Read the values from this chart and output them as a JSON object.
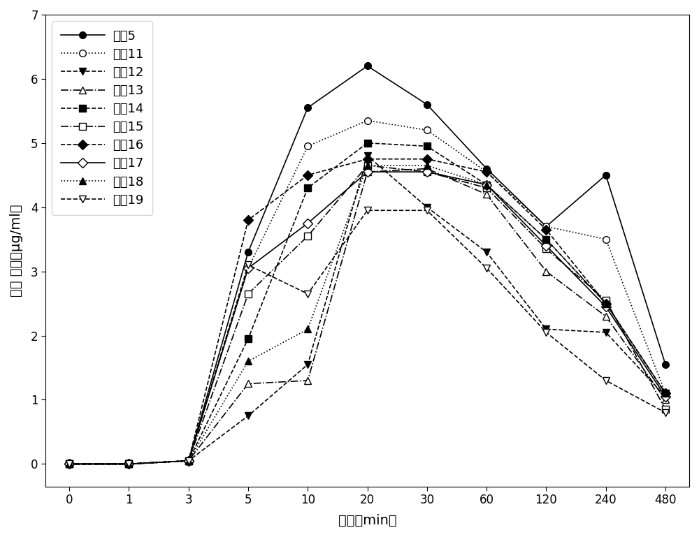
{
  "time_labels": [
    "0",
    "1",
    "3",
    "5",
    "10",
    "20",
    "30",
    "60",
    "120",
    "240",
    "480"
  ],
  "series": {
    "组别5": [
      0,
      0,
      0.05,
      3.3,
      5.55,
      6.2,
      5.6,
      4.6,
      3.7,
      4.5,
      1.55
    ],
    "组别11": [
      0,
      0,
      0.05,
      3.05,
      4.95,
      5.35,
      5.2,
      4.55,
      3.7,
      3.5,
      1.1
    ],
    "组别12": [
      0,
      0,
      0.05,
      0.75,
      1.55,
      4.8,
      4.0,
      3.3,
      2.1,
      2.05,
      1.05
    ],
    "组别13": [
      0,
      0,
      0.05,
      1.25,
      1.3,
      4.55,
      4.6,
      4.2,
      3.0,
      2.3,
      1.0
    ],
    "组别14": [
      0,
      0,
      0.05,
      1.95,
      4.3,
      5.0,
      4.95,
      4.35,
      3.5,
      2.5,
      1.1
    ],
    "组别15": [
      0,
      0,
      0.05,
      2.65,
      3.55,
      4.65,
      4.55,
      4.3,
      3.35,
      2.55,
      0.85
    ],
    "组别16": [
      0,
      0,
      0.05,
      3.8,
      4.5,
      4.75,
      4.75,
      4.55,
      3.65,
      2.5,
      1.1
    ],
    "组别17": [
      0,
      0,
      0.05,
      3.05,
      3.75,
      4.55,
      4.55,
      4.35,
      3.4,
      2.45,
      1.05
    ],
    "组别18": [
      0,
      0,
      0.05,
      1.6,
      2.1,
      4.65,
      4.65,
      4.35,
      3.5,
      2.5,
      1.1
    ],
    "组别19": [
      0,
      0,
      0.05,
      3.1,
      2.65,
      3.95,
      3.95,
      3.05,
      2.05,
      1.3,
      0.8
    ]
  },
  "styles": {
    "组别5": {
      "linestyle": "-",
      "marker": "o",
      "markersize": 7,
      "markerfacecolor": "black",
      "markeredgecolor": "black",
      "dashes": []
    },
    "组别11": {
      "linestyle": ":",
      "marker": "o",
      "markersize": 7,
      "markerfacecolor": "white",
      "markeredgecolor": "black",
      "dashes": []
    },
    "组别12": {
      "linestyle": "--",
      "marker": "v",
      "markersize": 7,
      "markerfacecolor": "black",
      "markeredgecolor": "black",
      "dashes": [
        6,
        2
      ]
    },
    "组别13": {
      "linestyle": "-.",
      "marker": "^",
      "markersize": 7,
      "markerfacecolor": "white",
      "markeredgecolor": "black",
      "dashes": []
    },
    "组别14": {
      "linestyle": "--",
      "marker": "s",
      "markersize": 7,
      "markerfacecolor": "black",
      "markeredgecolor": "black",
      "dashes": [
        8,
        2
      ]
    },
    "组别15": {
      "linestyle": "-.",
      "marker": "s",
      "markersize": 7,
      "markerfacecolor": "white",
      "markeredgecolor": "black",
      "dashes": []
    },
    "组别16": {
      "linestyle": "--",
      "marker": "D",
      "markersize": 7,
      "markerfacecolor": "black",
      "markeredgecolor": "black",
      "dashes": [
        4,
        2
      ]
    },
    "组别17": {
      "linestyle": "-",
      "marker": "D",
      "markersize": 7,
      "markerfacecolor": "white",
      "markeredgecolor": "black",
      "dashes": []
    },
    "组别18": {
      "linestyle": ":",
      "marker": "^",
      "markersize": 7,
      "markerfacecolor": "black",
      "markeredgecolor": "black",
      "dashes": []
    },
    "组别19": {
      "linestyle": "--",
      "marker": "v",
      "markersize": 7,
      "markerfacecolor": "white",
      "markeredgecolor": "black",
      "dashes": [
        10,
        3
      ]
    }
  },
  "xlabel": "时间（min）",
  "ylabel": "血药 浓度（μg/ml）",
  "ylim": [
    -0.35,
    7.0
  ],
  "yticks": [
    0,
    1,
    2,
    3,
    4,
    5,
    6,
    7
  ],
  "linewidth": 1.2,
  "figsize": [
    10.0,
    7.69
  ],
  "dpi": 100
}
